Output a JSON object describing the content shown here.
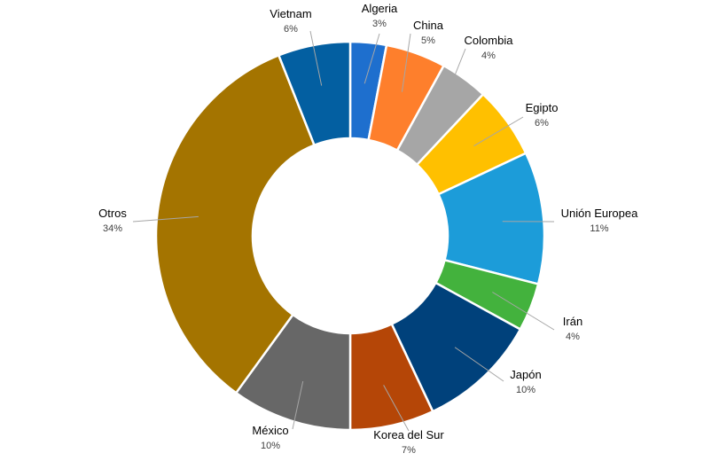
{
  "chart_data": {
    "type": "pie",
    "donut": true,
    "title": "",
    "legend": "none",
    "slices": [
      {
        "label": "Algeria",
        "value": 3,
        "value_label": "3%",
        "color": "#1e6fce"
      },
      {
        "label": "China",
        "value": 5,
        "value_label": "5%",
        "color": "#fe7f2c"
      },
      {
        "label": "Colombia",
        "value": 4,
        "value_label": "4%",
        "color": "#a6a6a6"
      },
      {
        "label": "Egipto",
        "value": 6,
        "value_label": "6%",
        "color": "#ffc000"
      },
      {
        "label": "Unión Europea",
        "value": 11,
        "value_label": "11%",
        "color": "#1c9cd9"
      },
      {
        "label": "Irán",
        "value": 4,
        "value_label": "4%",
        "color": "#43b23d"
      },
      {
        "label": "Japón",
        "value": 10,
        "value_label": "10%",
        "color": "#00417b"
      },
      {
        "label": "Korea del Sur",
        "value": 7,
        "value_label": "7%",
        "color": "#b54607"
      },
      {
        "label": "México",
        "value": 10,
        "value_label": "10%",
        "color": "#676767"
      },
      {
        "label": "Otros",
        "value": 34,
        "value_label": "34%",
        "color": "#a47400"
      },
      {
        "label": "Vietnam",
        "value": 6,
        "value_label": "6%",
        "color": "#035fa1"
      }
    ]
  }
}
